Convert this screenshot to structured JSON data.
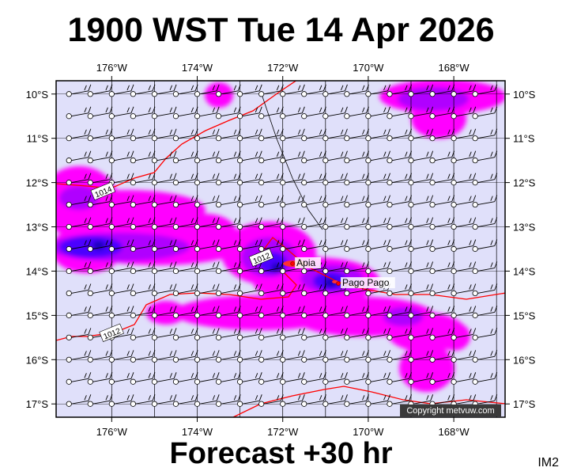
{
  "title": "1900 WST Tue 14 Apr 2026",
  "subtitle": "Forecast +30 hr",
  "image_code": "IM2",
  "copyright": "Copyright metvuw.com",
  "map": {
    "lon_range": [
      -177.3,
      -166.8
    ],
    "lat_range": [
      -17.3,
      -9.7
    ],
    "lon_ticks": [
      {
        "value": -176,
        "label": "176°W"
      },
      {
        "value": -174,
        "label": "174°W"
      },
      {
        "value": -172,
        "label": "172°W"
      },
      {
        "value": -170,
        "label": "170°W"
      },
      {
        "value": -168,
        "label": "168°W"
      }
    ],
    "lat_ticks": [
      {
        "value": -10,
        "label": "10°S"
      },
      {
        "value": -11,
        "label": "11°S"
      },
      {
        "value": -12,
        "label": "12°S"
      },
      {
        "value": -13,
        "label": "13°S"
      },
      {
        "value": -14,
        "label": "14°S"
      },
      {
        "value": -15,
        "label": "15°S"
      },
      {
        "value": -16,
        "label": "16°S"
      },
      {
        "value": -17,
        "label": "17°S"
      }
    ],
    "places": [
      {
        "name": "Apia",
        "lon": -171.77,
        "lat": -13.83
      },
      {
        "name": "Pago Pago",
        "lon": -170.7,
        "lat": -14.28
      }
    ],
    "isobar_labels": [
      {
        "text": "1014",
        "lon": -176.2,
        "lat": -12.2
      },
      {
        "text": "1012",
        "lon": -172.5,
        "lat": -13.7
      },
      {
        "text": "1012",
        "lon": -176.0,
        "lat": -15.4
      }
    ],
    "colors": {
      "background": "#e0e0fa",
      "isobar": "#ff0000",
      "rain_light": "#ff00ff",
      "rain_medium": "#b000ff",
      "rain_heavy": "#4b00ff",
      "rain_core": "#1a00c0"
    }
  }
}
